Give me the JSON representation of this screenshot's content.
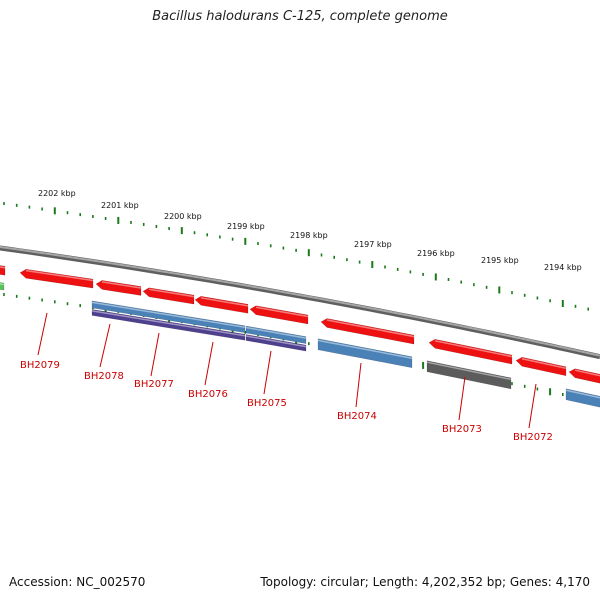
{
  "title": "Bacillus halodurans C-125, complete genome",
  "footer": {
    "accession": "Accession: NC_002570",
    "summary": "Topology: circular; Length: 4,202,352 bp; Genes: 4,170"
  },
  "colors": {
    "backbone": "#7d7d7d",
    "forward_gene": "#ee1111",
    "reverse_blue": "#4a82b8",
    "reverse_purple": "#4f3f8f",
    "reverse_gray": "#5c5c5c",
    "tick_green": "#1a7a1a",
    "label_red": "#cc0000"
  },
  "kbp_ticks": [
    "2202 kbp",
    "2201 kbp",
    "2200 kbp",
    "2199 kbp",
    "2198 kbp",
    "2197 kbp",
    "2196 kbp",
    "2195 kbp",
    "2194 kbp"
  ],
  "gene_labels": [
    "BH2079",
    "BH2078",
    "BH2077",
    "BH2076",
    "BH2075",
    "BH2074",
    "BH2073",
    "BH2072"
  ]
}
